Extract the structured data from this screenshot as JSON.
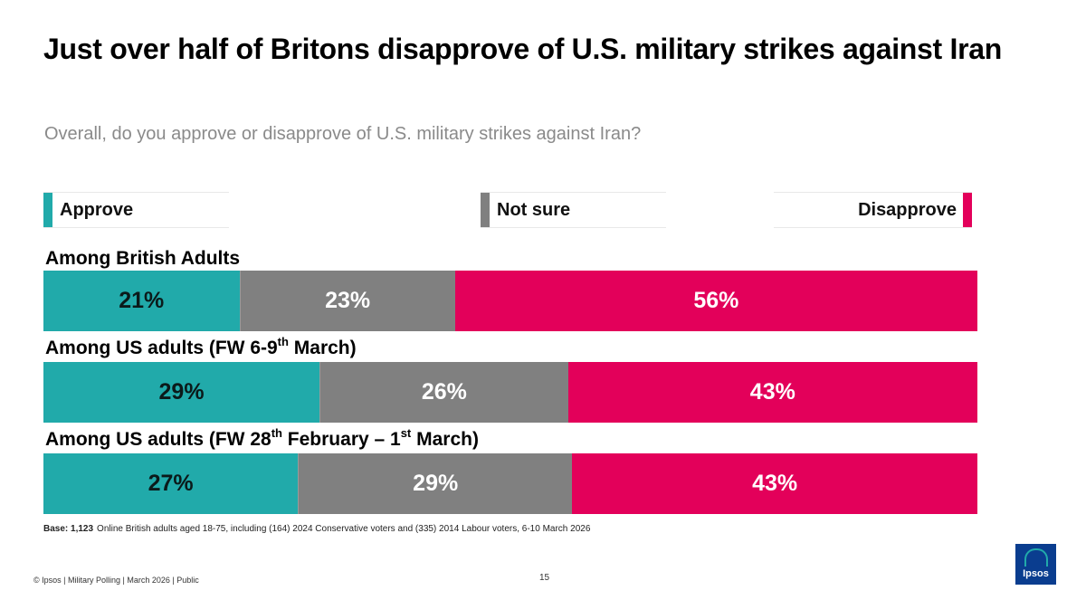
{
  "header": {
    "title": "Just over half of Britons disapprove of U.S. military strikes against Iran",
    "subtitle": "Overall, do you approve or disapprove of U.S. military strikes against Iran?"
  },
  "legend": {
    "approve": "Approve",
    "not_sure": "Not sure",
    "disapprove": "Disapprove"
  },
  "colors": {
    "approve": "#21aaaa",
    "not_sure": "#808080",
    "disapprove": "#e3005a",
    "logo": "#0a3d8f"
  },
  "chart_data": {
    "type": "bar",
    "orientation": "horizontal-stacked-100",
    "title": "Just over half of Britons disapprove of U.S. military strikes against Iran",
    "subtitle": "Overall, do you approve or disapprove of U.S. military strikes against Iran?",
    "categories": [
      "Among British Adults",
      "Among US adults (FW 6-9th March)",
      "Among US adults (FW 28th February – 1st March)"
    ],
    "series": [
      {
        "name": "Approve",
        "values": [
          21,
          29,
          27
        ]
      },
      {
        "name": "Not sure",
        "values": [
          23,
          26,
          29
        ]
      },
      {
        "name": "Disapprove",
        "values": [
          56,
          43,
          43
        ]
      }
    ],
    "value_labels": [
      [
        "21%",
        "23%",
        "56%"
      ],
      [
        "29%",
        "26%",
        "43%"
      ],
      [
        "27%",
        "29%",
        "43%"
      ]
    ],
    "label_parts": [
      {
        "text": "Among British Adults"
      },
      {
        "a": "Among US adults (FW 6-9",
        "sup1": "th",
        "b": " March)"
      },
      {
        "a": "Among US adults (FW 28",
        "sup1": "th",
        "b": " February – 1",
        "sup2": "st",
        "c": " March)"
      }
    ],
    "legend": [
      "Approve",
      "Not sure",
      "Disapprove"
    ],
    "legend_position": "top",
    "xlim": [
      0,
      100
    ]
  },
  "base": {
    "label": "Base: 1,123",
    "text": "Online British adults aged 18-75, including (164) 2024 Conservative voters and (335) 2014 Labour voters, 6-10 March 2026"
  },
  "footer": {
    "text": "© Ipsos | Military Polling | March 2026 | Public",
    "page_number": "15"
  },
  "logo": {
    "text": "Ipsos"
  }
}
